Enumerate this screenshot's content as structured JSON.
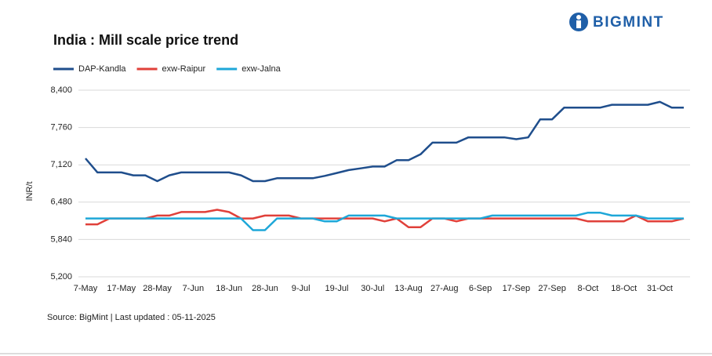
{
  "brand": "BIGMINT",
  "chart_data": {
    "type": "line",
    "title": "India : Mill scale price trend",
    "y_label": "INR/t",
    "source": "Source: BigMint | Last updated : 05-11-2025",
    "categories": [
      "7-May",
      null,
      null,
      "17-May",
      null,
      null,
      "28-May",
      null,
      null,
      "7-Jun",
      null,
      null,
      "18-Jun",
      null,
      null,
      "28-Jun",
      null,
      null,
      "9-Jul",
      null,
      null,
      "19-Jul",
      null,
      null,
      "30-Jul",
      null,
      null,
      "13-Aug",
      null,
      null,
      "27-Aug",
      null,
      null,
      "6-Sep",
      null,
      null,
      "17-Sep",
      null,
      null,
      "27-Sep",
      null,
      null,
      "8-Oct",
      null,
      null,
      "18-Oct",
      null,
      null,
      "31-Oct",
      null,
      null
    ],
    "series": [
      {
        "name": "DAP-Kandla",
        "color": "#1f4e8c",
        "values": [
          7230,
          6990,
          6990,
          6990,
          6940,
          6940,
          6840,
          6940,
          6990,
          6990,
          6990,
          6990,
          6990,
          6940,
          6840,
          6840,
          6890,
          6890,
          6890,
          6890,
          6930,
          6980,
          7030,
          7060,
          7090,
          7090,
          7200,
          7200,
          7300,
          7500,
          7500,
          7500,
          7590,
          7590,
          7590,
          7590,
          7560,
          7590,
          7900,
          7900,
          8100,
          8100,
          8100,
          8100,
          8150,
          8150,
          8150,
          8150,
          8200,
          8100,
          8100
        ]
      },
      {
        "name": "exw-Raipur",
        "color": "#e0403a",
        "values": [
          6100,
          6100,
          6200,
          6200,
          6200,
          6200,
          6250,
          6250,
          6310,
          6310,
          6310,
          6350,
          6310,
          6200,
          6200,
          6250,
          6250,
          6250,
          6200,
          6200,
          6200,
          6200,
          6200,
          6200,
          6200,
          6150,
          6200,
          6050,
          6050,
          6200,
          6200,
          6150,
          6200,
          6200,
          6200,
          6200,
          6200,
          6200,
          6200,
          6200,
          6200,
          6200,
          6150,
          6150,
          6150,
          6150,
          6250,
          6150,
          6150,
          6150,
          6200
        ]
      },
      {
        "name": "exw-Jalna",
        "color": "#1ea7d8",
        "values": [
          6200,
          6200,
          6200,
          6200,
          6200,
          6200,
          6200,
          6200,
          6200,
          6200,
          6200,
          6200,
          6200,
          6200,
          6000,
          6000,
          6200,
          6200,
          6200,
          6200,
          6150,
          6150,
          6250,
          6250,
          6250,
          6250,
          6200,
          6200,
          6200,
          6200,
          6200,
          6200,
          6200,
          6200,
          6250,
          6250,
          6250,
          6250,
          6250,
          6250,
          6250,
          6250,
          6300,
          6300,
          6250,
          6250,
          6250,
          6200,
          6200,
          6200,
          6200
        ]
      }
    ],
    "ylim": [
      5200,
      8400
    ],
    "yticks": [
      {
        "value": 5200,
        "label": "5,200"
      },
      {
        "value": 5840,
        "label": "5,840"
      },
      {
        "value": 6480,
        "label": "6,480"
      },
      {
        "value": 7120,
        "label": "7,120"
      },
      {
        "value": 7760,
        "label": "7,760"
      },
      {
        "value": 8400,
        "label": "8,400"
      }
    ],
    "grid": true,
    "legend": "top-left"
  }
}
